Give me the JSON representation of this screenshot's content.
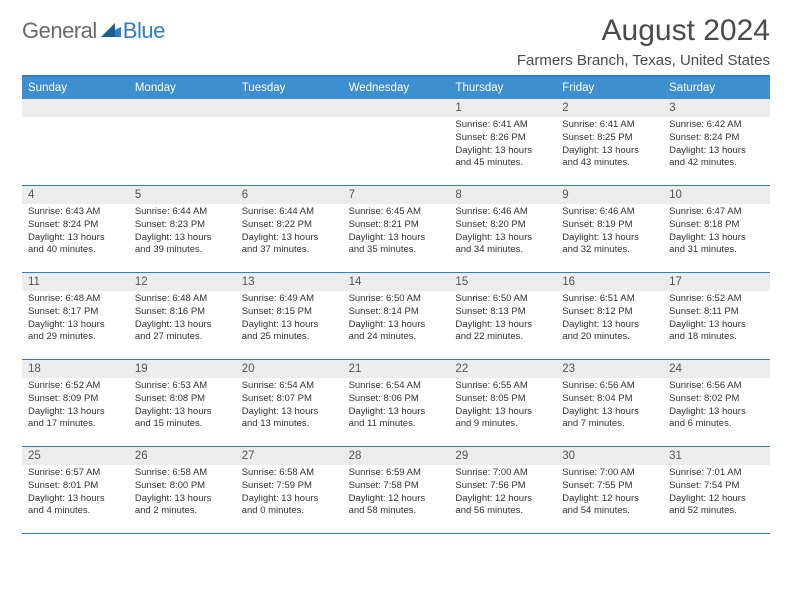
{
  "logo": {
    "general": "General",
    "blue": "Blue"
  },
  "title": "August 2024",
  "location": "Farmers Branch, Texas, United States",
  "colors": {
    "header_bg": "#3e8fd0",
    "border": "#2f7fc2",
    "daynum_bg": "#ececec",
    "text": "#333333"
  },
  "days_of_week": [
    "Sunday",
    "Monday",
    "Tuesday",
    "Wednesday",
    "Thursday",
    "Friday",
    "Saturday"
  ],
  "weeks": [
    [
      {
        "n": "",
        "empty": true
      },
      {
        "n": "",
        "empty": true
      },
      {
        "n": "",
        "empty": true
      },
      {
        "n": "",
        "empty": true
      },
      {
        "n": "1",
        "sunrise": "Sunrise: 6:41 AM",
        "sunset": "Sunset: 8:26 PM",
        "daylight": "Daylight: 13 hours and 45 minutes."
      },
      {
        "n": "2",
        "sunrise": "Sunrise: 6:41 AM",
        "sunset": "Sunset: 8:25 PM",
        "daylight": "Daylight: 13 hours and 43 minutes."
      },
      {
        "n": "3",
        "sunrise": "Sunrise: 6:42 AM",
        "sunset": "Sunset: 8:24 PM",
        "daylight": "Daylight: 13 hours and 42 minutes."
      }
    ],
    [
      {
        "n": "4",
        "sunrise": "Sunrise: 6:43 AM",
        "sunset": "Sunset: 8:24 PM",
        "daylight": "Daylight: 13 hours and 40 minutes."
      },
      {
        "n": "5",
        "sunrise": "Sunrise: 6:44 AM",
        "sunset": "Sunset: 8:23 PM",
        "daylight": "Daylight: 13 hours and 39 minutes."
      },
      {
        "n": "6",
        "sunrise": "Sunrise: 6:44 AM",
        "sunset": "Sunset: 8:22 PM",
        "daylight": "Daylight: 13 hours and 37 minutes."
      },
      {
        "n": "7",
        "sunrise": "Sunrise: 6:45 AM",
        "sunset": "Sunset: 8:21 PM",
        "daylight": "Daylight: 13 hours and 35 minutes."
      },
      {
        "n": "8",
        "sunrise": "Sunrise: 6:46 AM",
        "sunset": "Sunset: 8:20 PM",
        "daylight": "Daylight: 13 hours and 34 minutes."
      },
      {
        "n": "9",
        "sunrise": "Sunrise: 6:46 AM",
        "sunset": "Sunset: 8:19 PM",
        "daylight": "Daylight: 13 hours and 32 minutes."
      },
      {
        "n": "10",
        "sunrise": "Sunrise: 6:47 AM",
        "sunset": "Sunset: 8:18 PM",
        "daylight": "Daylight: 13 hours and 31 minutes."
      }
    ],
    [
      {
        "n": "11",
        "sunrise": "Sunrise: 6:48 AM",
        "sunset": "Sunset: 8:17 PM",
        "daylight": "Daylight: 13 hours and 29 minutes."
      },
      {
        "n": "12",
        "sunrise": "Sunrise: 6:48 AM",
        "sunset": "Sunset: 8:16 PM",
        "daylight": "Daylight: 13 hours and 27 minutes."
      },
      {
        "n": "13",
        "sunrise": "Sunrise: 6:49 AM",
        "sunset": "Sunset: 8:15 PM",
        "daylight": "Daylight: 13 hours and 25 minutes."
      },
      {
        "n": "14",
        "sunrise": "Sunrise: 6:50 AM",
        "sunset": "Sunset: 8:14 PM",
        "daylight": "Daylight: 13 hours and 24 minutes."
      },
      {
        "n": "15",
        "sunrise": "Sunrise: 6:50 AM",
        "sunset": "Sunset: 8:13 PM",
        "daylight": "Daylight: 13 hours and 22 minutes."
      },
      {
        "n": "16",
        "sunrise": "Sunrise: 6:51 AM",
        "sunset": "Sunset: 8:12 PM",
        "daylight": "Daylight: 13 hours and 20 minutes."
      },
      {
        "n": "17",
        "sunrise": "Sunrise: 6:52 AM",
        "sunset": "Sunset: 8:11 PM",
        "daylight": "Daylight: 13 hours and 18 minutes."
      }
    ],
    [
      {
        "n": "18",
        "sunrise": "Sunrise: 6:52 AM",
        "sunset": "Sunset: 8:09 PM",
        "daylight": "Daylight: 13 hours and 17 minutes."
      },
      {
        "n": "19",
        "sunrise": "Sunrise: 6:53 AM",
        "sunset": "Sunset: 8:08 PM",
        "daylight": "Daylight: 13 hours and 15 minutes."
      },
      {
        "n": "20",
        "sunrise": "Sunrise: 6:54 AM",
        "sunset": "Sunset: 8:07 PM",
        "daylight": "Daylight: 13 hours and 13 minutes."
      },
      {
        "n": "21",
        "sunrise": "Sunrise: 6:54 AM",
        "sunset": "Sunset: 8:06 PM",
        "daylight": "Daylight: 13 hours and 11 minutes."
      },
      {
        "n": "22",
        "sunrise": "Sunrise: 6:55 AM",
        "sunset": "Sunset: 8:05 PM",
        "daylight": "Daylight: 13 hours and 9 minutes."
      },
      {
        "n": "23",
        "sunrise": "Sunrise: 6:56 AM",
        "sunset": "Sunset: 8:04 PM",
        "daylight": "Daylight: 13 hours and 7 minutes."
      },
      {
        "n": "24",
        "sunrise": "Sunrise: 6:56 AM",
        "sunset": "Sunset: 8:02 PM",
        "daylight": "Daylight: 13 hours and 6 minutes."
      }
    ],
    [
      {
        "n": "25",
        "sunrise": "Sunrise: 6:57 AM",
        "sunset": "Sunset: 8:01 PM",
        "daylight": "Daylight: 13 hours and 4 minutes."
      },
      {
        "n": "26",
        "sunrise": "Sunrise: 6:58 AM",
        "sunset": "Sunset: 8:00 PM",
        "daylight": "Daylight: 13 hours and 2 minutes."
      },
      {
        "n": "27",
        "sunrise": "Sunrise: 6:58 AM",
        "sunset": "Sunset: 7:59 PM",
        "daylight": "Daylight: 13 hours and 0 minutes."
      },
      {
        "n": "28",
        "sunrise": "Sunrise: 6:59 AM",
        "sunset": "Sunset: 7:58 PM",
        "daylight": "Daylight: 12 hours and 58 minutes."
      },
      {
        "n": "29",
        "sunrise": "Sunrise: 7:00 AM",
        "sunset": "Sunset: 7:56 PM",
        "daylight": "Daylight: 12 hours and 56 minutes."
      },
      {
        "n": "30",
        "sunrise": "Sunrise: 7:00 AM",
        "sunset": "Sunset: 7:55 PM",
        "daylight": "Daylight: 12 hours and 54 minutes."
      },
      {
        "n": "31",
        "sunrise": "Sunrise: 7:01 AM",
        "sunset": "Sunset: 7:54 PM",
        "daylight": "Daylight: 12 hours and 52 minutes."
      }
    ]
  ]
}
